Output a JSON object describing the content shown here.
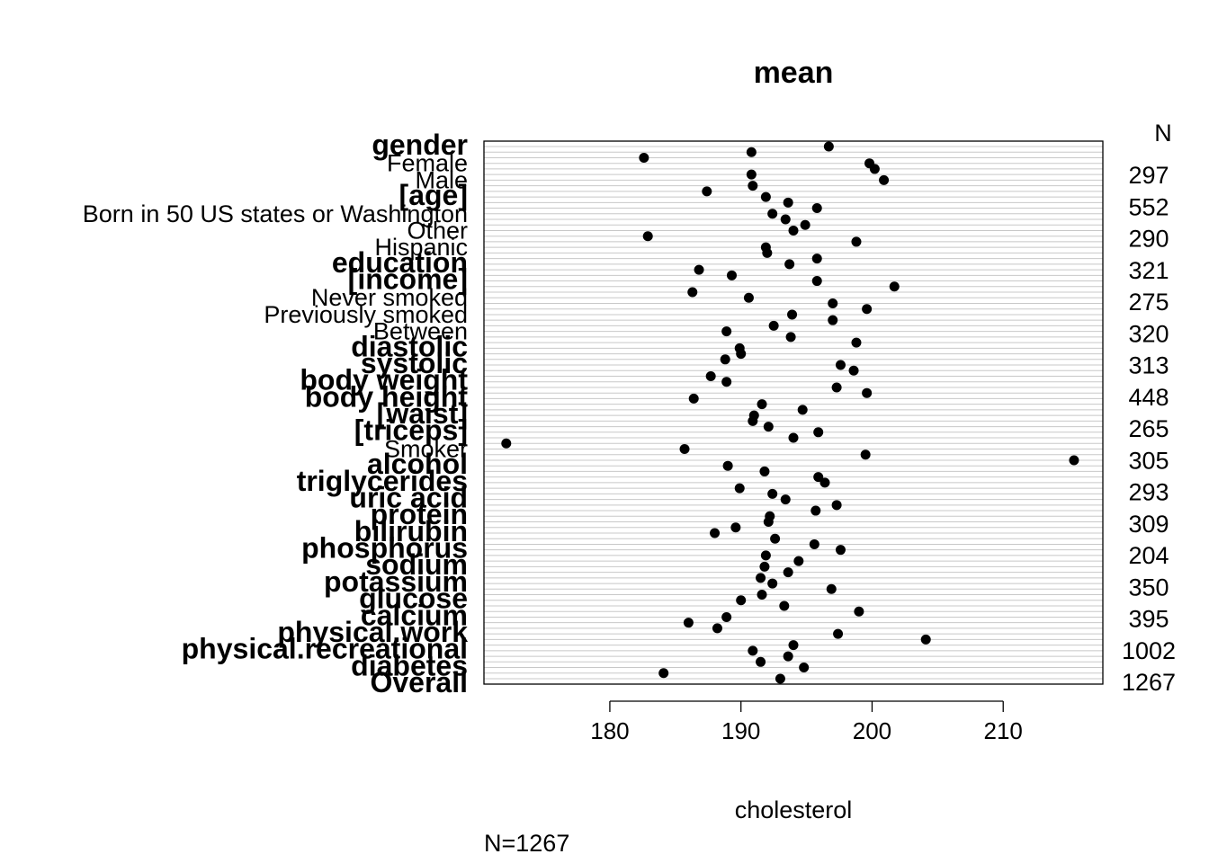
{
  "chart_data": {
    "type": "scatter",
    "title": "mean",
    "xlabel": "cholesterol",
    "n_header": "N",
    "footnote": "N=1267",
    "xlim": [
      170.4,
      217.6
    ],
    "xticks": [
      180,
      190,
      200,
      210
    ],
    "grid": true,
    "row_labels": [
      {
        "text": "gender",
        "bold": true
      },
      {
        "text": "Female",
        "bold": false
      },
      {
        "text": "Male",
        "bold": false
      },
      {
        "text": "[age]",
        "bold": true
      },
      {
        "text": "Born in 50 US states or Washington",
        "bold": false
      },
      {
        "text": "Other",
        "bold": false
      },
      {
        "text": "Hispanic",
        "bold": false
      },
      {
        "text": "education",
        "bold": true
      },
      {
        "text": "[income]",
        "bold": true
      },
      {
        "text": "Never smoked",
        "bold": false
      },
      {
        "text": "Previously smoked",
        "bold": false
      },
      {
        "text": "Between",
        "bold": false
      },
      {
        "text": "diastolic",
        "bold": true
      },
      {
        "text": "systolic",
        "bold": true
      },
      {
        "text": "body weight",
        "bold": true
      },
      {
        "text": "body height",
        "bold": true
      },
      {
        "text": "[waist]",
        "bold": true
      },
      {
        "text": "[triceps]",
        "bold": true
      },
      {
        "text": "Smoker",
        "bold": false
      },
      {
        "text": "alcohol",
        "bold": true
      },
      {
        "text": "triglycerides",
        "bold": true
      },
      {
        "text": "uric acid",
        "bold": true
      },
      {
        "text": "protein",
        "bold": true
      },
      {
        "text": "bilirubin",
        "bold": true
      },
      {
        "text": "phosphorus",
        "bold": true
      },
      {
        "text": "sodium",
        "bold": true
      },
      {
        "text": "potassium",
        "bold": true
      },
      {
        "text": "glucose",
        "bold": true
      },
      {
        "text": "calcium",
        "bold": true
      },
      {
        "text": "physical.work",
        "bold": true
      },
      {
        "text": "physical.recreational",
        "bold": true
      },
      {
        "text": "diabetes",
        "bold": true
      },
      {
        "text": "Overall",
        "bold": true
      }
    ],
    "n_values": [
      "297",
      "552",
      "290",
      "321",
      "275",
      "320",
      "313",
      "448",
      "265",
      "305",
      "293",
      "309",
      "204",
      "350",
      "395",
      "1002",
      "1267"
    ],
    "values": [
      196.7,
      190.8,
      182.6,
      199.8,
      200.2,
      190.8,
      200.9,
      190.9,
      187.4,
      191.9,
      193.6,
      195.8,
      192.4,
      193.4,
      194.9,
      194.0,
      182.9,
      198.8,
      191.9,
      192.0,
      195.8,
      193.7,
      186.8,
      189.3,
      195.8,
      201.7,
      186.3,
      190.6,
      197.0,
      199.6,
      193.9,
      197.0,
      192.5,
      188.9,
      193.8,
      198.8,
      189.9,
      190.0,
      188.8,
      197.6,
      198.6,
      187.7,
      188.9,
      197.3,
      199.6,
      186.4,
      191.6,
      194.7,
      191.0,
      190.9,
      192.1,
      195.9,
      194.0,
      172.1,
      185.7,
      199.5,
      215.4,
      189.0,
      191.8,
      195.9,
      196.4,
      189.9,
      192.4,
      193.4,
      197.3,
      195.7,
      192.2,
      192.1,
      189.6,
      188.0,
      192.6,
      195.6,
      197.6,
      191.9,
      194.4,
      191.8,
      193.6,
      191.5,
      192.4,
      196.9,
      191.6,
      190.0,
      193.3,
      199.0,
      188.9,
      186.0,
      188.2,
      197.4,
      204.1,
      194.0,
      190.9,
      193.6,
      191.5,
      194.8,
      184.1,
      193.0
    ]
  }
}
